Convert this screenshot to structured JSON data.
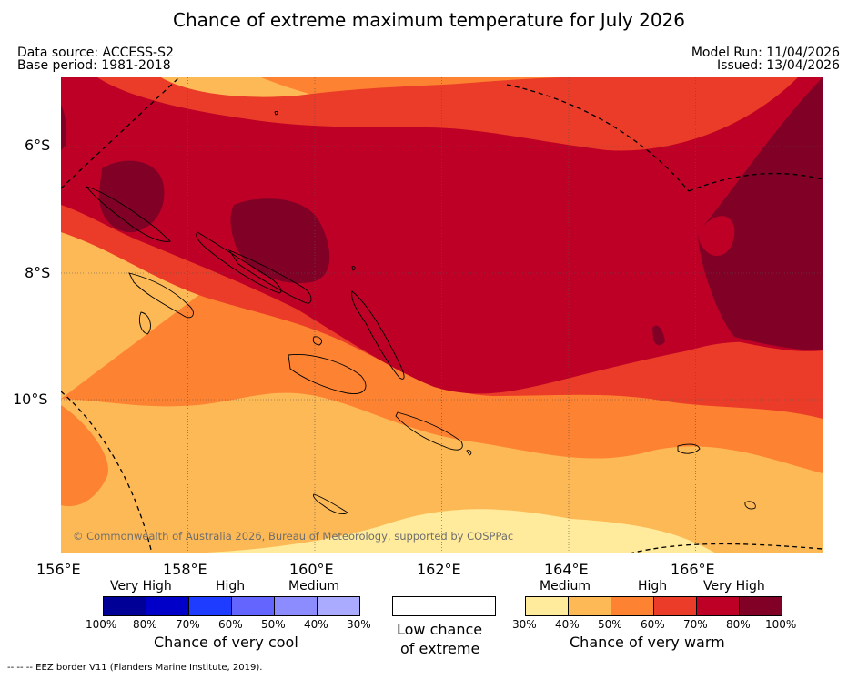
{
  "header": {
    "title": "Chance of extreme maximum temperature for July 2026",
    "data_source": "Data source: ACCESS-S2",
    "base_period": "Base period: 1981-2018",
    "model_run": "Model Run: 11/04/2026",
    "issued": "Issued: 13/04/2026"
  },
  "map": {
    "copyright": "© Commonwealth of Australia 2026, Bureau of Meteorology, supported by COSPPac",
    "lat_labels": [
      "6°S",
      "8°S",
      "10°S"
    ],
    "lon_labels": [
      "156°E",
      "158°E",
      "160°E",
      "162°E",
      "164°E",
      "166°E"
    ],
    "lon_range": [
      156,
      168
    ],
    "lat_range": [
      -5,
      -12.5
    ]
  },
  "legend": {
    "cool": {
      "categories": [
        "Very High",
        "High",
        "Medium"
      ],
      "percents": [
        "100%",
        "80%",
        "70%",
        "60%",
        "50%",
        "40%",
        "30%"
      ],
      "colors": [
        "#000096",
        "#0000c8",
        "#1e3cff",
        "#6464ff",
        "#8c8cff",
        "#aaaaff"
      ],
      "title": "Chance of very cool"
    },
    "neutral": {
      "line1": "Low chance",
      "line2": "of extreme",
      "color": "#ffffff"
    },
    "warm": {
      "categories": [
        "Medium",
        "High",
        "Very High"
      ],
      "percents": [
        "30%",
        "40%",
        "50%",
        "60%",
        "70%",
        "80%",
        "100%"
      ],
      "colors": [
        "#ffeb9b",
        "#fdb956",
        "#fd8232",
        "#ea3c28",
        "#be0026",
        "#800026"
      ],
      "title": "Chance of very warm"
    }
  },
  "footer": {
    "eez_note": "--  --  -- EEZ border V11 (Flanders Marine Institute, 2019)."
  }
}
